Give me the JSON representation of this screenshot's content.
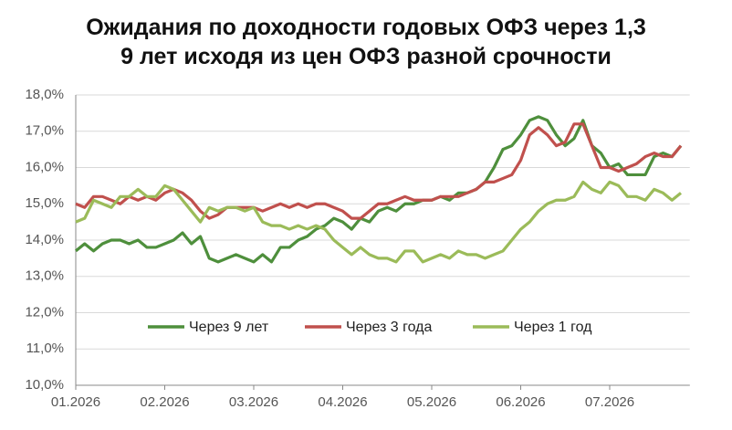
{
  "chart_data": {
    "type": "line",
    "title": "Ожидания по доходности годовых ОФЗ через 1,3 9 лет исходя из цен ОФЗ разной срочности",
    "categories": [
      "01.2026",
      null,
      null,
      null,
      null,
      null,
      null,
      null,
      null,
      null,
      "02.2026",
      null,
      null,
      null,
      null,
      null,
      null,
      null,
      null,
      null,
      "03.2026",
      null,
      null,
      null,
      null,
      null,
      null,
      null,
      null,
      null,
      "04.2026",
      null,
      null,
      null,
      null,
      null,
      null,
      null,
      null,
      null,
      "05.2026",
      null,
      null,
      null,
      null,
      null,
      null,
      null,
      null,
      null,
      "06.2026",
      null,
      null,
      null,
      null,
      null,
      null,
      null,
      null,
      null,
      "07.2026",
      null,
      null,
      null,
      null,
      null,
      null,
      null,
      null
    ],
    "series": [
      {
        "name": "Через 9 лет",
        "color": "#4e8f3c",
        "values": [
          13.7,
          13.9,
          13.7,
          13.9,
          14.0,
          14.0,
          13.9,
          14.0,
          13.8,
          13.8,
          13.9,
          14.0,
          14.2,
          13.9,
          14.1,
          13.5,
          13.4,
          13.5,
          13.6,
          13.5,
          13.4,
          13.6,
          13.4,
          13.8,
          13.8,
          14.0,
          14.1,
          14.3,
          14.4,
          14.6,
          14.5,
          14.3,
          14.6,
          14.5,
          14.8,
          14.9,
          14.8,
          15.0,
          15.0,
          15.1,
          15.1,
          15.2,
          15.1,
          15.3,
          15.3,
          15.4,
          15.6,
          16.0,
          16.5,
          16.6,
          16.9,
          17.3,
          17.4,
          17.3,
          16.9,
          16.6,
          16.8,
          17.3,
          16.6,
          16.4,
          16.0,
          16.1,
          15.8,
          15.8,
          15.8,
          16.3,
          16.4,
          16.3,
          16.6
        ]
      },
      {
        "name": "Через 3 года",
        "color": "#c0504d",
        "values": [
          15.0,
          14.9,
          15.2,
          15.2,
          15.1,
          15.0,
          15.2,
          15.1,
          15.2,
          15.1,
          15.3,
          15.4,
          15.3,
          15.1,
          14.8,
          14.6,
          14.7,
          14.9,
          14.9,
          14.9,
          14.9,
          14.8,
          14.9,
          15.0,
          14.9,
          15.0,
          14.9,
          15.0,
          15.0,
          14.9,
          14.8,
          14.6,
          14.6,
          14.8,
          15.0,
          15.0,
          15.1,
          15.2,
          15.1,
          15.1,
          15.1,
          15.2,
          15.2,
          15.2,
          15.3,
          15.4,
          15.6,
          15.6,
          15.7,
          15.8,
          16.2,
          16.9,
          17.1,
          16.9,
          16.6,
          16.7,
          17.2,
          17.2,
          16.6,
          16.0,
          16.0,
          15.9,
          16.0,
          16.1,
          16.3,
          16.4,
          16.3,
          16.3,
          16.6
        ]
      },
      {
        "name": "Через 1 год",
        "color": "#9bbb59",
        "values": [
          14.5,
          14.6,
          15.1,
          15.0,
          14.9,
          15.2,
          15.2,
          15.4,
          15.2,
          15.2,
          15.5,
          15.4,
          15.1,
          14.8,
          14.5,
          14.9,
          14.8,
          14.9,
          14.9,
          14.8,
          14.9,
          14.5,
          14.4,
          14.4,
          14.3,
          14.4,
          14.3,
          14.4,
          14.3,
          14.0,
          13.8,
          13.6,
          13.8,
          13.6,
          13.5,
          13.5,
          13.4,
          13.7,
          13.7,
          13.4,
          13.5,
          13.6,
          13.5,
          13.7,
          13.6,
          13.6,
          13.5,
          13.6,
          13.7,
          14.0,
          14.3,
          14.5,
          14.8,
          15.0,
          15.1,
          15.1,
          15.2,
          15.6,
          15.4,
          15.3,
          15.6,
          15.5,
          15.2,
          15.2,
          15.1,
          15.4,
          15.3,
          15.1,
          15.3
        ]
      }
    ],
    "ylim": [
      10,
      18
    ],
    "yticks": [
      {
        "value": 10,
        "label": "10,0%"
      },
      {
        "value": 11,
        "label": "11,0%"
      },
      {
        "value": 12,
        "label": "12,0%"
      },
      {
        "value": 13,
        "label": "13,0%"
      },
      {
        "value": 14,
        "label": "14,0%"
      },
      {
        "value": 15,
        "label": "15,0%"
      },
      {
        "value": 16,
        "label": "16,0%"
      },
      {
        "value": 17,
        "label": "17,0%"
      },
      {
        "value": 18,
        "label": "18,0%"
      }
    ],
    "grid": true
  }
}
